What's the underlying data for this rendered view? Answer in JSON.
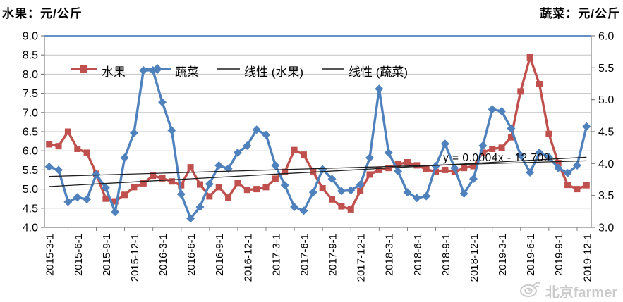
{
  "chart_data": {
    "type": "line",
    "title": "",
    "left_axis": {
      "title": "水果：元/公斤",
      "min": 4.0,
      "max": 9.0,
      "step": 0.5
    },
    "right_axis": {
      "title": "蔬菜：元/公斤",
      "min": 3.0,
      "max": 6.0,
      "step": 0.5
    },
    "grid": true,
    "legend_position": "top-center",
    "x_tick_step": 3,
    "categories": [
      "2015-3-1",
      "2015-4-1",
      "2015-5-1",
      "2015-6-1",
      "2015-7-1",
      "2015-8-1",
      "2015-9-1",
      "2015-10-1",
      "2015-11-1",
      "2015-12-1",
      "2016-1-1",
      "2016-2-1",
      "2016-3-1",
      "2016-4-1",
      "2016-5-1",
      "2016-6-1",
      "2016-7-1",
      "2016-8-1",
      "2016-9-1",
      "2016-10-1",
      "2016-11-1",
      "2016-12-1",
      "2017-1-1",
      "2017-2-1",
      "2017-3-1",
      "2017-4-1",
      "2017-5-1",
      "2017-6-1",
      "2017-7-1",
      "2017-8-1",
      "2017-9-1",
      "2017-10-1",
      "2017-11-1",
      "2017-12-1",
      "2018-1-1",
      "2018-2-1",
      "2018-3-1",
      "2018-4-1",
      "2018-5-1",
      "2018-6-1",
      "2018-7-1",
      "2018-8-1",
      "2018-9-1",
      "2018-10-1",
      "2018-11-1",
      "2018-12-1",
      "2019-1-1",
      "2019-2-1",
      "2019-3-1",
      "2019-4-1",
      "2019-5-1",
      "2019-6-1",
      "2019-7-1",
      "2019-8-1",
      "2019-9-1",
      "2019-10-1",
      "2019-11-1",
      "2019-12-1"
    ],
    "series": [
      {
        "name": "水果",
        "axis": "left",
        "color": "#C0504D",
        "marker": "square",
        "values": [
          6.17,
          6.12,
          6.5,
          6.05,
          5.95,
          5.4,
          4.75,
          4.68,
          4.85,
          5.05,
          5.15,
          5.35,
          5.28,
          5.2,
          5.1,
          5.57,
          5.12,
          4.81,
          5.05,
          4.78,
          5.16,
          4.98,
          5.0,
          5.05,
          5.27,
          5.45,
          6.02,
          5.9,
          5.45,
          5.02,
          4.73,
          4.55,
          4.47,
          4.95,
          5.38,
          5.5,
          5.55,
          5.65,
          5.7,
          5.62,
          5.52,
          5.45,
          5.5,
          5.45,
          5.55,
          5.6,
          5.95,
          6.05,
          6.08,
          6.35,
          7.55,
          8.44,
          7.74,
          6.44,
          5.68,
          5.11,
          5.0,
          5.1
        ]
      },
      {
        "name": "蔬菜",
        "axis": "right",
        "color": "#4F81BD",
        "marker": "diamond",
        "values": [
          3.95,
          3.9,
          3.4,
          3.47,
          3.44,
          3.83,
          3.62,
          3.24,
          4.09,
          4.48,
          5.46,
          5.46,
          4.96,
          4.52,
          3.52,
          3.14,
          3.32,
          3.68,
          3.97,
          3.92,
          4.17,
          4.28,
          4.53,
          4.45,
          3.97,
          3.66,
          3.32,
          3.26,
          3.55,
          3.91,
          3.76,
          3.57,
          3.58,
          3.67,
          4.09,
          5.17,
          4.17,
          3.88,
          3.55,
          3.46,
          3.49,
          3.96,
          4.31,
          3.93,
          3.53,
          3.76,
          4.28,
          4.85,
          4.82,
          4.55,
          4.13,
          3.86,
          4.17,
          4.1,
          3.93,
          3.85,
          3.97,
          4.58
        ]
      }
    ],
    "trendlines": [
      {
        "name": "线性 (水果)",
        "axis": "left",
        "color": "#1f1f1f",
        "start": 5.33,
        "end": 5.74
      },
      {
        "name": "线性 (蔬菜)",
        "axis": "right",
        "color": "#1f1f1f",
        "start": 3.64,
        "end": 4.1
      }
    ],
    "legend": [
      "水果",
      "蔬菜",
      "线性 (水果)",
      "线性 (蔬菜)"
    ],
    "annotation": "y = 0.0004x - 12.709"
  },
  "watermark": {
    "text": "北京farmer"
  }
}
